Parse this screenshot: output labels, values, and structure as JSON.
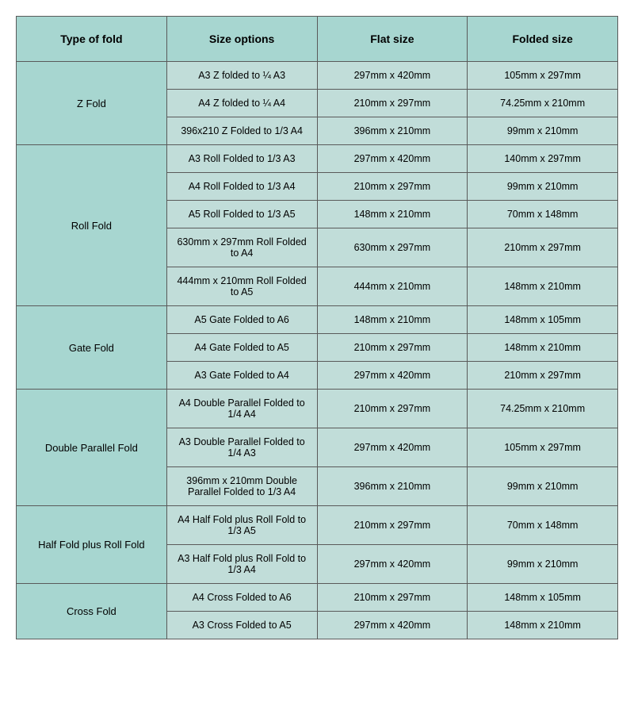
{
  "table": {
    "type": "table",
    "background_color": "#ffffff",
    "header_bg": "#a7d6d0",
    "type_cell_bg": "#a7d6d0",
    "data_cell_bg": "#c1ddd9",
    "border_color": "#5a5a5a",
    "header_fontsize": 14,
    "cell_fontsize": 12.5,
    "columns": [
      "Type of fold",
      "Size options",
      "Flat size",
      "Folded size"
    ],
    "groups": [
      {
        "type": "Z Fold",
        "rows": [
          {
            "option": "A3 Z folded to ¼ A3",
            "flat": "297mm x 420mm",
            "folded": "105mm x 297mm"
          },
          {
            "option": "A4 Z folded to ¼ A4",
            "flat": "210mm x 297mm",
            "folded": "74.25mm x 210mm"
          },
          {
            "option": "396x210 Z Folded to 1/3 A4",
            "flat": "396mm x 210mm",
            "folded": "99mm x 210mm"
          }
        ]
      },
      {
        "type": "Roll Fold",
        "rows": [
          {
            "option": "A3 Roll Folded to 1/3 A3",
            "flat": "297mm x 420mm",
            "folded": "140mm x 297mm"
          },
          {
            "option": "A4 Roll Folded to 1/3 A4",
            "flat": "210mm x 297mm",
            "folded": "99mm x 210mm"
          },
          {
            "option": "A5 Roll Folded to 1/3 A5",
            "flat": "148mm x 210mm",
            "folded": "70mm x 148mm"
          },
          {
            "option": "630mm x 297mm Roll Folded to A4",
            "flat": "630mm x 297mm",
            "folded": "210mm x 297mm"
          },
          {
            "option": "444mm x 210mm Roll Folded to A5",
            "flat": "444mm x 210mm",
            "folded": "148mm x 210mm"
          }
        ]
      },
      {
        "type": "Gate Fold",
        "rows": [
          {
            "option": "A5 Gate Folded to A6",
            "flat": "148mm x 210mm",
            "folded": "148mm x 105mm"
          },
          {
            "option": "A4 Gate Folded to A5",
            "flat": "210mm x 297mm",
            "folded": "148mm x 210mm"
          },
          {
            "option": "A3 Gate Folded to A4",
            "flat": "297mm x 420mm",
            "folded": "210mm x 297mm"
          }
        ]
      },
      {
        "type": "Double Parallel Fold",
        "rows": [
          {
            "option": "A4 Double Parallel Folded to 1/4 A4",
            "flat": "210mm x 297mm",
            "folded": "74.25mm x 210mm"
          },
          {
            "option": "A3 Double Parallel Folded to 1/4 A3",
            "flat": "297mm x 420mm",
            "folded": "105mm x 297mm"
          },
          {
            "option": "396mm x 210mm Double Parallel Folded to 1/3 A4",
            "flat": "396mm x 210mm",
            "folded": "99mm x 210mm"
          }
        ]
      },
      {
        "type": "Half Fold plus Roll Fold",
        "rows": [
          {
            "option": "A4 Half Fold plus Roll Fold to 1/3 A5",
            "flat": "210mm x 297mm",
            "folded": "70mm x 148mm"
          },
          {
            "option": "A3 Half Fold plus Roll Fold to 1/3 A4",
            "flat": "297mm x 420mm",
            "folded": "99mm x 210mm"
          }
        ]
      },
      {
        "type": "Cross Fold",
        "rows": [
          {
            "option": "A4 Cross Folded to A6",
            "flat": "210mm x 297mm",
            "folded": "148mm x 105mm"
          },
          {
            "option": "A3 Cross Folded to A5",
            "flat": "297mm x 420mm",
            "folded": "148mm x 210mm"
          }
        ]
      }
    ]
  }
}
